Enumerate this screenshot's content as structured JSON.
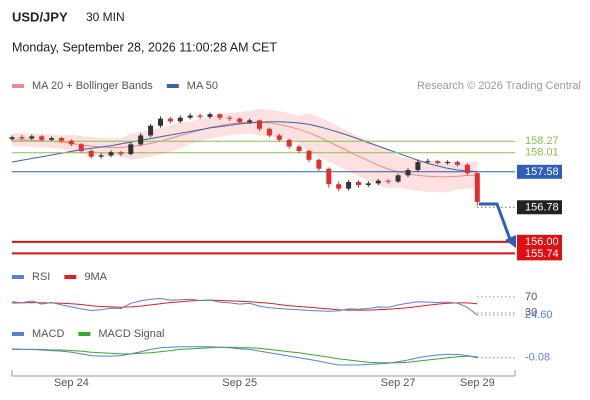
{
  "header": {
    "symbol": "USD/JPY",
    "interval": "30 MIN",
    "timestamp": "Monday, September 28, 2026 11:00:28 AM CET"
  },
  "chart_data": [
    {
      "type": "candlestick",
      "credit": "Research © 2026 Trading Central",
      "categories": [
        null,
        null,
        null,
        null,
        null,
        null,
        "Sep 24",
        null,
        null,
        null,
        null,
        null,
        null,
        null,
        null,
        null,
        null,
        null,
        null,
        null,
        null,
        null,
        null,
        "Sep 25",
        null,
        null,
        null,
        null,
        null,
        null,
        null,
        null,
        null,
        null,
        null,
        null,
        null,
        null,
        null,
        "Sep 27",
        null,
        null,
        null,
        null,
        null,
        null,
        null,
        "Sep 29"
      ],
      "open": [
        158.32,
        158.36,
        158.33,
        158.38,
        158.3,
        158.34,
        158.28,
        158.2,
        158.05,
        157.92,
        157.95,
        158.02,
        157.98,
        158.2,
        158.4,
        158.62,
        158.78,
        158.72,
        158.8,
        158.85,
        158.82,
        158.88,
        158.8,
        158.78,
        158.7,
        158.74,
        158.55,
        158.4,
        158.3,
        158.15,
        158.05,
        157.85,
        157.65,
        157.3,
        157.2,
        157.35,
        157.28,
        157.32,
        157.38,
        157.36,
        157.5,
        157.62,
        157.8,
        157.82,
        157.78,
        157.8,
        157.74,
        157.55
      ],
      "high": [
        158.4,
        158.41,
        158.42,
        158.41,
        158.38,
        158.37,
        158.31,
        158.23,
        158.08,
        158.0,
        158.06,
        158.05,
        158.24,
        158.45,
        158.66,
        158.83,
        158.82,
        158.85,
        158.9,
        158.89,
        158.92,
        158.9,
        158.84,
        158.81,
        158.78,
        158.76,
        158.58,
        158.44,
        158.33,
        158.19,
        158.08,
        157.88,
        157.68,
        157.36,
        157.4,
        157.39,
        157.37,
        157.42,
        157.41,
        157.54,
        157.66,
        157.86,
        157.87,
        157.85,
        157.84,
        157.83,
        157.77,
        157.58
      ],
      "low": [
        158.28,
        158.29,
        158.3,
        158.26,
        158.27,
        158.24,
        158.16,
        158.01,
        157.88,
        157.88,
        157.91,
        157.93,
        157.95,
        158.17,
        158.36,
        158.58,
        158.67,
        158.68,
        158.76,
        158.77,
        158.78,
        158.75,
        158.73,
        158.66,
        158.66,
        158.5,
        158.36,
        158.26,
        158.1,
        158.0,
        157.8,
        157.6,
        157.22,
        157.14,
        157.16,
        157.22,
        157.24,
        157.28,
        157.31,
        157.33,
        157.46,
        157.58,
        157.76,
        157.74,
        157.74,
        157.7,
        157.5,
        156.82
      ],
      "close": [
        158.36,
        158.33,
        158.38,
        158.3,
        158.34,
        158.28,
        158.2,
        158.05,
        157.92,
        157.95,
        158.02,
        157.98,
        158.2,
        158.4,
        158.62,
        158.78,
        158.72,
        158.8,
        158.85,
        158.82,
        158.88,
        158.8,
        158.78,
        158.7,
        158.74,
        158.55,
        158.4,
        158.3,
        158.15,
        158.05,
        157.85,
        157.65,
        157.3,
        157.2,
        157.35,
        157.28,
        157.32,
        157.38,
        157.36,
        157.5,
        157.62,
        157.8,
        157.82,
        157.78,
        157.8,
        157.74,
        157.55,
        156.9
      ],
      "up_color": "#333333",
      "down_color": "#e0302e",
      "series": [
        {
          "name": "MA 20 + Bollinger Bands",
          "color": "#f08a8a",
          "band_color": "#fde0e0",
          "values": [
            158.3,
            158.3,
            158.29,
            158.28,
            158.27,
            158.25,
            158.22,
            158.19,
            158.16,
            158.14,
            158.13,
            158.13,
            158.15,
            158.18,
            158.22,
            158.27,
            158.33,
            158.4,
            158.46,
            158.52,
            158.58,
            158.62,
            158.66,
            158.68,
            158.7,
            158.7,
            158.68,
            158.65,
            158.6,
            158.54,
            158.46,
            158.37,
            158.26,
            158.15,
            158.04,
            157.93,
            157.83,
            157.73,
            157.64,
            157.58,
            157.53,
            157.5,
            157.48,
            157.47,
            157.47,
            157.48,
            157.5,
            157.5
          ],
          "upper": [
            158.45,
            158.45,
            158.44,
            158.43,
            158.42,
            158.4,
            158.42,
            158.39,
            158.36,
            158.34,
            158.33,
            158.33,
            158.45,
            158.48,
            158.52,
            158.57,
            158.63,
            158.7,
            158.71,
            158.77,
            158.83,
            158.87,
            158.91,
            158.93,
            158.95,
            159.0,
            158.98,
            158.95,
            158.9,
            158.84,
            158.91,
            158.82,
            158.71,
            158.6,
            158.49,
            158.38,
            158.28,
            158.18,
            158.09,
            157.93,
            157.88,
            157.85,
            157.83,
            157.82,
            157.82,
            157.78,
            157.8,
            157.8
          ],
          "lower": [
            158.15,
            158.15,
            158.14,
            158.13,
            158.12,
            158.1,
            158.02,
            157.99,
            157.96,
            157.94,
            157.93,
            157.93,
            157.85,
            157.88,
            157.92,
            157.97,
            158.03,
            158.1,
            158.21,
            158.27,
            158.33,
            158.37,
            158.41,
            158.43,
            158.45,
            158.4,
            158.38,
            158.35,
            158.3,
            158.24,
            158.01,
            157.92,
            157.81,
            157.7,
            157.59,
            157.48,
            157.38,
            157.28,
            157.19,
            157.23,
            157.18,
            157.15,
            157.13,
            157.12,
            157.12,
            157.18,
            157.2,
            157.2
          ]
        },
        {
          "name": "MA 50",
          "color": "#3a64a8",
          "values": [
            157.8,
            157.84,
            157.88,
            157.92,
            157.96,
            158.0,
            158.04,
            158.08,
            158.11,
            158.14,
            158.17,
            158.21,
            158.25,
            158.29,
            158.33,
            158.37,
            158.41,
            158.45,
            158.49,
            158.53,
            158.57,
            158.6,
            158.63,
            158.66,
            158.68,
            158.7,
            158.71,
            158.71,
            158.7,
            158.68,
            158.65,
            158.6,
            158.54,
            158.47,
            158.4,
            158.32,
            158.24,
            158.16,
            158.08,
            158.0,
            157.92,
            157.84,
            157.77,
            157.71,
            157.66,
            157.62,
            157.6,
            157.58
          ]
        }
      ],
      "ylim": [
        155.5,
        159.2
      ],
      "levels": [
        {
          "value": 158.27,
          "color": "#8cbf4a",
          "line": "solid",
          "label_style": "text"
        },
        {
          "value": 158.01,
          "color": "#8cbf4a",
          "line": "solid",
          "label_style": "text"
        },
        {
          "value": 157.58,
          "color": "#2e5eb8",
          "line": "solid",
          "label_style": "box"
        },
        {
          "value": 156.78,
          "color": "#222222",
          "line": "dotted",
          "label_style": "box"
        },
        {
          "value": 156,
          "label": "156.00",
          "color": "#e01010",
          "line": "thick",
          "label_style": "box"
        },
        {
          "value": 155.74,
          "color": "#e01010",
          "line": "thick",
          "label_style": "box"
        }
      ]
    },
    {
      "type": "line",
      "series": [
        {
          "name": "RSI",
          "color": "#5b7fd6",
          "values": [
            58,
            55,
            60,
            52,
            56,
            50,
            45,
            40,
            36,
            38,
            42,
            41,
            54,
            60,
            64,
            66,
            62,
            63,
            64,
            61,
            62,
            57,
            55,
            52,
            54,
            47,
            43,
            41,
            39,
            38,
            36,
            35,
            34,
            35,
            40,
            39,
            41,
            45,
            44,
            50,
            54,
            58,
            57,
            56,
            57,
            54,
            44,
            24.6
          ]
        },
        {
          "name": "9MA",
          "color": "#e02020",
          "values": [
            55,
            55,
            56,
            55,
            55,
            54,
            53,
            51,
            48,
            46,
            45,
            44,
            45,
            47,
            50,
            53,
            56,
            58,
            60,
            61,
            62,
            61,
            60,
            59,
            58,
            56,
            54,
            51,
            48,
            46,
            44,
            42,
            40,
            38,
            37,
            37,
            37,
            38,
            39,
            41,
            43,
            46,
            49,
            52,
            54,
            55,
            55,
            53
          ]
        }
      ],
      "ylim": [
        12,
        100
      ],
      "yticks": [
        70,
        30
      ],
      "last_label": {
        "value": 24.6,
        "label": "24.60"
      }
    },
    {
      "type": "line",
      "series": [
        {
          "name": "MACD",
          "color": "#5b7fd6",
          "values": [
            0.08,
            0.07,
            0.07,
            0.06,
            0.05,
            0.04,
            0.02,
            -0.01,
            -0.04,
            -0.05,
            -0.05,
            -0.04,
            -0.01,
            0.03,
            0.07,
            0.1,
            0.11,
            0.12,
            0.12,
            0.12,
            0.12,
            0.11,
            0.1,
            0.08,
            0.07,
            0.04,
            0.01,
            -0.02,
            -0.05,
            -0.08,
            -0.11,
            -0.14,
            -0.18,
            -0.21,
            -0.21,
            -0.21,
            -0.2,
            -0.19,
            -0.18,
            -0.15,
            -0.12,
            -0.08,
            -0.05,
            -0.03,
            -0.02,
            -0.02,
            -0.04,
            -0.08
          ]
        },
        {
          "name": "MACD Signal",
          "color": "#3aa82a",
          "values": [
            0.07,
            0.07,
            0.07,
            0.07,
            0.06,
            0.06,
            0.05,
            0.04,
            0.02,
            0.01,
            0.0,
            -0.01,
            -0.01,
            0.0,
            0.01,
            0.03,
            0.05,
            0.07,
            0.08,
            0.09,
            0.1,
            0.11,
            0.11,
            0.1,
            0.1,
            0.09,
            0.07,
            0.05,
            0.03,
            0.01,
            -0.02,
            -0.04,
            -0.07,
            -0.1,
            -0.12,
            -0.14,
            -0.16,
            -0.17,
            -0.17,
            -0.17,
            -0.16,
            -0.14,
            -0.12,
            -0.1,
            -0.08,
            -0.06,
            -0.05,
            -0.06
          ]
        }
      ],
      "ylim": [
        -0.3,
        0.15
      ],
      "last_label": -0.08
    }
  ]
}
